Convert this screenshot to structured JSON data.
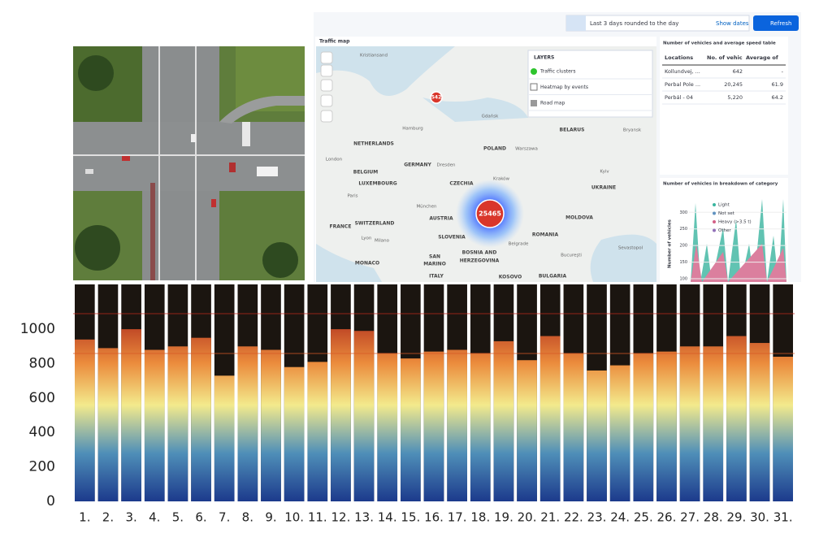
{
  "toolbar": {
    "date_range": "Last 3 days rounded to the day",
    "show_dates": "Show dates",
    "refresh": "Refresh"
  },
  "traffic_map": {
    "title": "Traffic map",
    "layers_title": "LAYERS",
    "layers": [
      "Traffic clusters",
      "Heatmap by events",
      "Road map"
    ],
    "clusters": [
      "542",
      "25465"
    ],
    "place_labels": [
      "Kristiansand",
      "Gdańsk",
      "Hamburg",
      "NETHERLANDS",
      "GERMANY",
      "Dresden",
      "POLAND",
      "Warszawa",
      "BELARUS",
      "Bryansk",
      "London",
      "BELGIUM",
      "LUXEMBOURG",
      "CZECHIA",
      "Kraków",
      "Kyiv",
      "UKRAINE",
      "Paris",
      "München",
      "AUSTRIA",
      "FRANCE",
      "SWITZERLAND",
      "MOLDOVA",
      "ROMANIA",
      "SLOVENIA",
      "Lyon",
      "Milano",
      "Belgrade",
      "BOSNIA AND",
      "HERZEGOVINA",
      "MONACO",
      "SAN",
      "MARINO",
      "Sevastopol",
      "Bucureşti",
      "ITALY",
      "KOSOVO",
      "BULGARIA"
    ]
  },
  "speed_table": {
    "title": "Number of vehicles and average speed table",
    "columns": [
      "Locations",
      "No. of vehic",
      "Average of"
    ],
    "rows": [
      [
        "Kollundvej, ...",
        "642",
        "-"
      ],
      [
        "Perbal Pole ...",
        "20,245",
        "61.9"
      ],
      [
        "Perbál - 04",
        "5,220",
        "64.2"
      ]
    ]
  },
  "category_chart": {
    "title": "Number of vehicles in breakdown of category",
    "y_label": "Number of vehicles",
    "ylim": [
      95,
      330
    ],
    "yticks": [
      300,
      250,
      200,
      150,
      100
    ],
    "legend": [
      {
        "name": "Light",
        "color": "#3ab5a0"
      },
      {
        "name": "Not set",
        "color": "#6092c0"
      },
      {
        "name": "Heavy (>3.5 t)",
        "color": "#d36086"
      },
      {
        "name": "Other",
        "color": "#9170b8"
      }
    ]
  },
  "chart_data": {
    "type": "bar",
    "categories": [
      "1.",
      "2.",
      "3.",
      "4.",
      "5.",
      "6.",
      "7.",
      "8.",
      "9.",
      "10.",
      "11.",
      "12.",
      "13.",
      "14.",
      "15.",
      "16.",
      "17.",
      "18.",
      "19.",
      "20.",
      "21.",
      "22.",
      "23.",
      "24.",
      "25.",
      "26.",
      "27.",
      "28.",
      "29.",
      "30.",
      "31."
    ],
    "values": [
      940,
      890,
      1000,
      880,
      900,
      950,
      730,
      900,
      880,
      780,
      810,
      1000,
      990,
      860,
      830,
      870,
      880,
      860,
      930,
      820,
      960,
      860,
      760,
      790,
      860,
      870,
      900,
      900,
      960,
      920,
      840
    ],
    "ylim": [
      0,
      1260
    ],
    "yticks": [
      0,
      200,
      400,
      600,
      800,
      1000
    ]
  }
}
